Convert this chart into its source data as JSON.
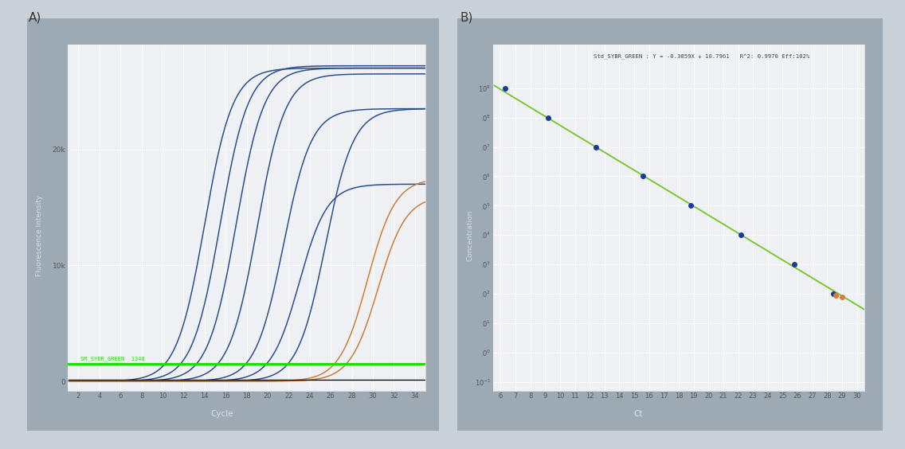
{
  "panel_a": {
    "bg_color": "#9daab4",
    "plot_bg": "#eef0f3",
    "xlabel": "Cycle",
    "ylabel": "Fluorescence Intensity",
    "x_ticks": [
      2,
      4,
      6,
      8,
      10,
      12,
      14,
      16,
      18,
      20,
      22,
      24,
      26,
      28,
      30,
      32,
      34
    ],
    "y_ticks_label": [
      "0",
      "10k",
      "20k"
    ],
    "y_ticks_val": [
      0,
      10000,
      20000
    ],
    "ylim": [
      -800,
      29000
    ],
    "xlim": [
      1,
      35
    ],
    "threshold_y": 1500,
    "threshold_label": "SM_SYBR_GREEN  1348",
    "sigmoid_curves": [
      {
        "midpoint": 14.0,
        "plateau": 27000,
        "color": "#2c4f8c",
        "lw": 1.1
      },
      {
        "midpoint": 15.5,
        "plateau": 27200,
        "color": "#2c4f8c",
        "lw": 1.1
      },
      {
        "midpoint": 17.0,
        "plateau": 27000,
        "color": "#2c4f8c",
        "lw": 1.1
      },
      {
        "midpoint": 19.0,
        "plateau": 26500,
        "color": "#2c4f8c",
        "lw": 1.1
      },
      {
        "midpoint": 21.5,
        "plateau": 23500,
        "color": "#2c4f8c",
        "lw": 1.1
      },
      {
        "midpoint": 23.0,
        "plateau": 17000,
        "color": "#2c4f8c",
        "lw": 1.1
      },
      {
        "midpoint": 25.5,
        "plateau": 23500,
        "color": "#2c4f8c",
        "lw": 1.1
      },
      {
        "midpoint": 29.5,
        "plateau": 17500,
        "color": "#c8803a",
        "lw": 1.1
      },
      {
        "midpoint": 30.5,
        "plateau": 16000,
        "color": "#c8803a",
        "lw": 1.1
      }
    ],
    "flat_line_color": "#111111",
    "flat_line_y": 120,
    "steepness": 0.75
  },
  "panel_b": {
    "bg_color": "#9daab4",
    "plot_bg": "#eef0f3",
    "xlabel": "Ct",
    "ylabel": "Concentration",
    "annotation": "Std_SYBR_GREEN : Y = -0.3059X + 10.7961   R^2: 0.9970 Eff:102%",
    "x_ticks": [
      6,
      7,
      8,
      9,
      10,
      11,
      12,
      13,
      14,
      15,
      16,
      17,
      18,
      19,
      20,
      21,
      22,
      23,
      24,
      25,
      26,
      27,
      28,
      29,
      30
    ],
    "xlim": [
      5.5,
      30.5
    ],
    "std_points_ct": [
      6.3,
      9.2,
      12.4,
      15.6,
      18.8,
      22.2,
      25.8,
      28.4
    ],
    "std_points_conc_exp": [
      9,
      8,
      7,
      6,
      5,
      4,
      3,
      2
    ],
    "sample_points_ct": [
      28.6,
      29.0
    ],
    "sample_points_conc_exp": [
      1.95,
      1.88
    ],
    "line_slope": -0.3059,
    "line_intercept": 10.7961,
    "line_color": "#78c832",
    "std_dot_color": "#1a3a9c",
    "sample_dot_color": "#d97c3a",
    "ytick_exps": [
      -1,
      0,
      1,
      2,
      3,
      4,
      5,
      6,
      7,
      8,
      9
    ],
    "ylim_vals": [
      0.05,
      30000000000.0
    ]
  },
  "outer_bg": "#c8d0d8"
}
